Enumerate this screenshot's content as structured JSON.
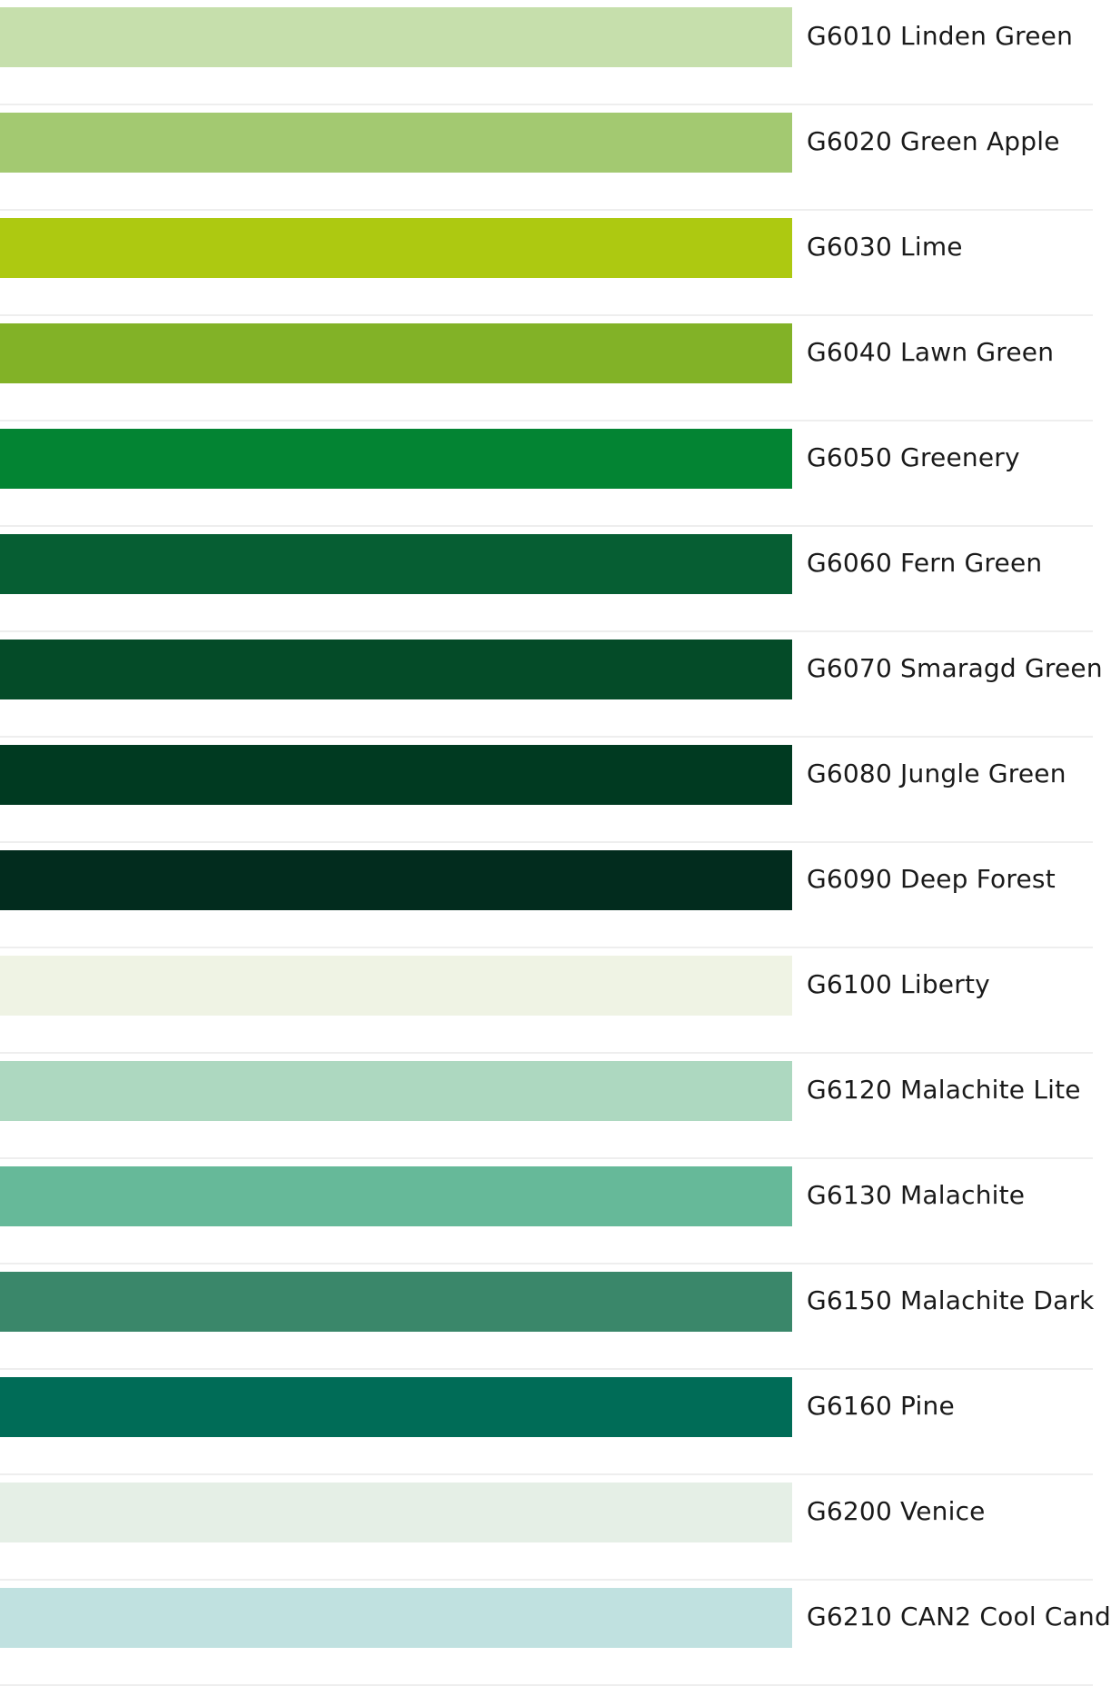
{
  "swatches": [
    {
      "code": "G6010",
      "name": "Linden Green",
      "label": "G6010 Linden Green",
      "color": "#c6dfac"
    },
    {
      "code": "G6020",
      "name": "Green Apple",
      "label": "G6020 Green Apple",
      "color": "#a3c971"
    },
    {
      "code": "G6030",
      "name": "Lime",
      "label": "G6030 Lime",
      "color": "#adc911"
    },
    {
      "code": "G6040",
      "name": "Lawn Green",
      "label": "G6040 Lawn Green",
      "color": "#82b227"
    },
    {
      "code": "G6050",
      "name": "Greenery",
      "label": "G6050 Greenery",
      "color": "#038433"
    },
    {
      "code": "G6060",
      "name": "Fern Green",
      "label": "G6060 Fern Green",
      "color": "#065e33"
    },
    {
      "code": "G6070",
      "name": "Smaragd Green",
      "label": "G6070 Smaragd Green",
      "color": "#044b28"
    },
    {
      "code": "G6080",
      "name": "Jungle Green",
      "label": "G6080 Jungle Green",
      "color": "#003a21"
    },
    {
      "code": "G6090",
      "name": "Deep Forest",
      "label": "G6090 Deep Forest",
      "color": "#022c1e"
    },
    {
      "code": "G6100",
      "name": "Liberty",
      "label": "G6100 Liberty",
      "color": "#eff3e4"
    },
    {
      "code": "G6120",
      "name": "Malachite Lite",
      "label": "G6120 Malachite Lite",
      "color": "#add8c0"
    },
    {
      "code": "G6130",
      "name": "Malachite",
      "label": "G6130 Malachite",
      "color": "#66b999"
    },
    {
      "code": "G6150",
      "name": "Malachite Dark",
      "label": "G6150 Malachite Dark",
      "color": "#3a876a"
    },
    {
      "code": "G6160",
      "name": "Pine",
      "label": "G6160 Pine",
      "color": "#006c57"
    },
    {
      "code": "G6200",
      "name": "Venice",
      "label": "G6200 Venice",
      "color": "#e5efe6"
    },
    {
      "code": "G6210",
      "name": "CAN2 Cool Cand",
      "label": "G6210 CAN2 Cool Cand",
      "color": "#c0e1e0"
    }
  ]
}
